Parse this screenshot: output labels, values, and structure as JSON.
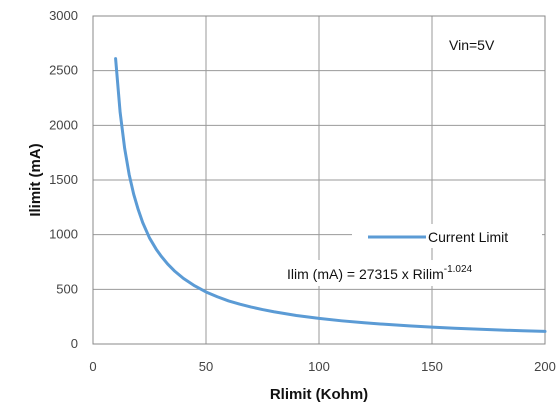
{
  "chart_data": {
    "type": "line",
    "title": "",
    "xlabel": "Rlimit (Kohm)",
    "ylabel": "Ilimit (mA)",
    "xlim": [
      0,
      200
    ],
    "ylim": [
      0,
      3000
    ],
    "xticks": [
      0,
      50,
      100,
      150,
      200
    ],
    "yticks": [
      0,
      500,
      1000,
      1500,
      2000,
      2500,
      3000
    ],
    "grid": true,
    "annotation": "Vin=5V",
    "legend_position": "inside-right",
    "formula": {
      "prefix": "Ilim (mA) = 27315 x Rilim",
      "exponent": "-1.024"
    },
    "series": [
      {
        "name": "Current Limit",
        "color": "#5B9BD5",
        "x": [
          10,
          12,
          14,
          16,
          18,
          20,
          22,
          25,
          28,
          30,
          33,
          36,
          40,
          45,
          50,
          55,
          60,
          65,
          70,
          75,
          80,
          90,
          100,
          110,
          120,
          130,
          140,
          150,
          160,
          170,
          180,
          190,
          200
        ],
        "y": [
          2610,
          2120,
          1790,
          1550,
          1370,
          1230,
          1110,
          970,
          866,
          808,
          732,
          669,
          600,
          532,
          476,
          432,
          394,
          364,
          338,
          315,
          295,
          261,
          234,
          212,
          194,
          179,
          166,
          154,
          144,
          136,
          128,
          121,
          115
        ]
      }
    ]
  }
}
